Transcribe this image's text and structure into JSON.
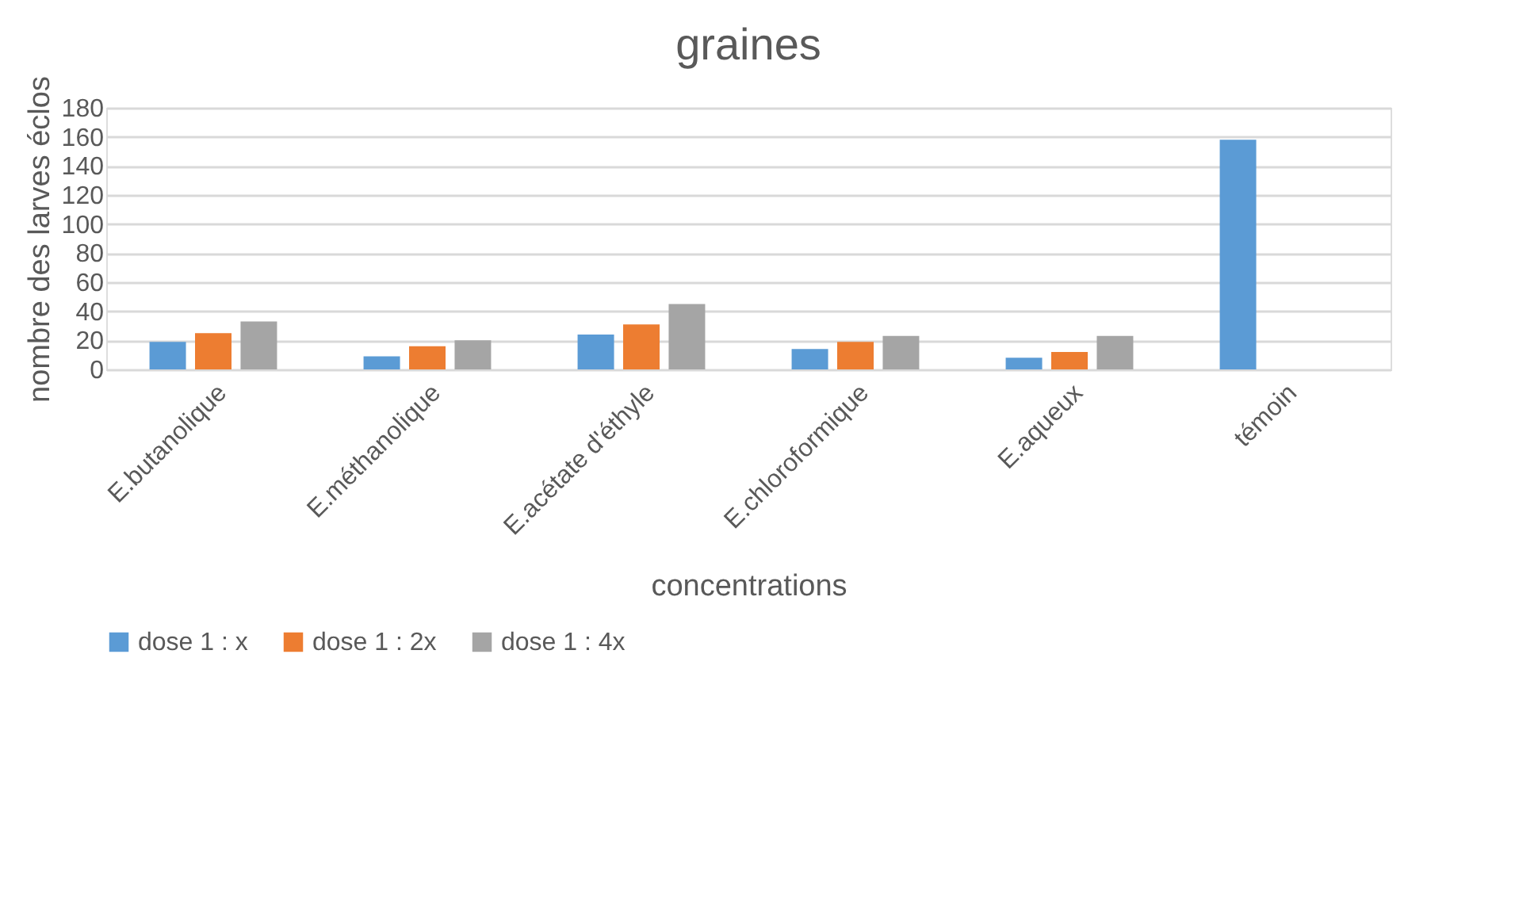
{
  "chart_data": {
    "type": "bar",
    "title": "graines",
    "xlabel": "concentrations",
    "ylabel": "nombre des larves éclos",
    "categories": [
      "E.butanolique",
      "E.méthanolique",
      "E.acétate d'éthyle",
      "E.chloroformique",
      "E.aqueux",
      "témoin"
    ],
    "series": [
      {
        "name": "dose 1 : x",
        "color": "#5b9bd5",
        "values": [
          19,
          9,
          24,
          14,
          8,
          158
        ]
      },
      {
        "name": "dose 1 : 2x",
        "color": "#ed7d31",
        "values": [
          25,
          16,
          31,
          19,
          12,
          null
        ]
      },
      {
        "name": "dose 1 : 4x",
        "color": "#a5a5a5",
        "values": [
          33,
          20,
          45,
          23,
          23,
          null
        ]
      }
    ],
    "ylim": [
      0,
      180
    ],
    "yticks": [
      0,
      20,
      40,
      60,
      80,
      100,
      120,
      140,
      160,
      180
    ],
    "grid": "y",
    "legend": "bottom"
  }
}
